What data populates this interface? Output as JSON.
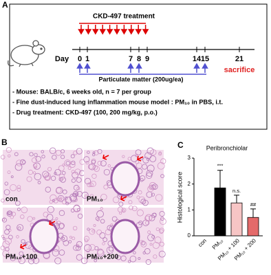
{
  "panel_a": {
    "letter": "A",
    "treatment_label": "CKD-497 treatment",
    "day_label": "Day",
    "days": [
      "0",
      "1",
      "7",
      "8",
      "9",
      "14",
      "15",
      "21"
    ],
    "sacrifice": "sacrifice",
    "exposure_label": "Particulate matter (200ug/ea)",
    "notes": [
      "- Mouse: BALB/c, 6 weeks old, n = 7 per group",
      "- Fine dust-induced lung inflammation mouse model : PM₁₀ in PBS, i.t.",
      "- Drug treatment: CKD-497 (100, 200 mg/kg, p.o.)"
    ]
  },
  "panel_b": {
    "letter": "B",
    "images": [
      "con",
      "PM₁₀",
      "PM₁₀+100",
      "PM₁₀+200"
    ]
  },
  "chart_data": {
    "type": "bar",
    "letter": "C",
    "title": "Peribronchiolar",
    "y_label": "Histological score",
    "categories": [
      "con",
      "PM₁₀",
      "PM₁₀ + 100",
      "PM₁₀ + 200"
    ],
    "values": [
      0,
      1.85,
      1.27,
      0.71
    ],
    "errors": [
      0,
      0.68,
      0.3,
      0.33
    ],
    "colors": [
      "#000000",
      "#000000",
      "#f7c5c5",
      "#e46a6a"
    ],
    "value_annotations": [
      null,
      "***",
      "n.s.",
      "##"
    ],
    "ylim": [
      0,
      3
    ],
    "yticks": [
      0,
      1,
      2,
      3
    ]
  }
}
